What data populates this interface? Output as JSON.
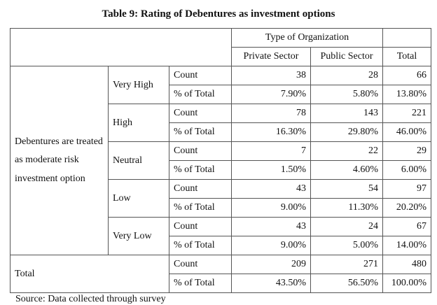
{
  "title": "Table 9: Rating of Debentures as investment options",
  "header": {
    "group": "Type of Organization",
    "cols": [
      "Private Sector",
      "Public Sector",
      "Total"
    ]
  },
  "row_group": "Debentures are treated as moderate risk investment option",
  "ratings": [
    {
      "label": "Very High",
      "count": {
        "label": "Count",
        "values": [
          "38",
          "28",
          "66"
        ]
      },
      "pct": {
        "label": "% of Total",
        "values": [
          "7.90%",
          "5.80%",
          "13.80%"
        ]
      }
    },
    {
      "label": "High",
      "count": {
        "label": "Count",
        "values": [
          "78",
          "143",
          "221"
        ]
      },
      "pct": {
        "label": "% of Total",
        "values": [
          "16.30%",
          "29.80%",
          "46.00%"
        ]
      }
    },
    {
      "label": "Neutral",
      "count": {
        "label": "Count",
        "values": [
          "7",
          "22",
          "29"
        ]
      },
      "pct": {
        "label": "% of Total",
        "values": [
          "1.50%",
          "4.60%",
          "6.00%"
        ]
      }
    },
    {
      "label": "Low",
      "count": {
        "label": "Count",
        "values": [
          "43",
          "54",
          "97"
        ]
      },
      "pct": {
        "label": "% of Total",
        "values": [
          "9.00%",
          "11.30%",
          "20.20%"
        ]
      }
    },
    {
      "label": "Very Low",
      "count": {
        "label": "Count",
        "values": [
          "43",
          "24",
          "67"
        ]
      },
      "pct": {
        "label": "% of Total",
        "values": [
          "9.00%",
          "5.00%",
          "14.00%"
        ]
      }
    }
  ],
  "total": {
    "label": "Total",
    "count": {
      "label": "Count",
      "values": [
        "209",
        "271",
        "480"
      ]
    },
    "pct": {
      "label": "% of Total",
      "values": [
        "43.50%",
        "56.50%",
        "100.00%"
      ]
    }
  },
  "source": "Source: Data collected through survey"
}
